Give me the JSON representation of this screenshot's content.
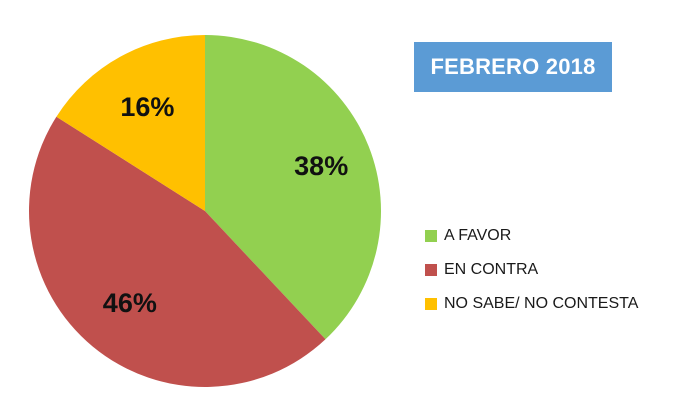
{
  "chart_data": {
    "type": "pie",
    "title": "FEBRERO 2018",
    "slices": [
      {
        "label": "A FAVOR",
        "value": 38,
        "display": "38%",
        "color": "#92d050"
      },
      {
        "label": "EN CONTRA",
        "value": 46,
        "display": "46%",
        "color": "#c0504d"
      },
      {
        "label": "NO SABE/ NO CONTESTA",
        "value": 16,
        "display": "16%",
        "color": "#ffc000"
      }
    ],
    "legend_position": "right"
  }
}
